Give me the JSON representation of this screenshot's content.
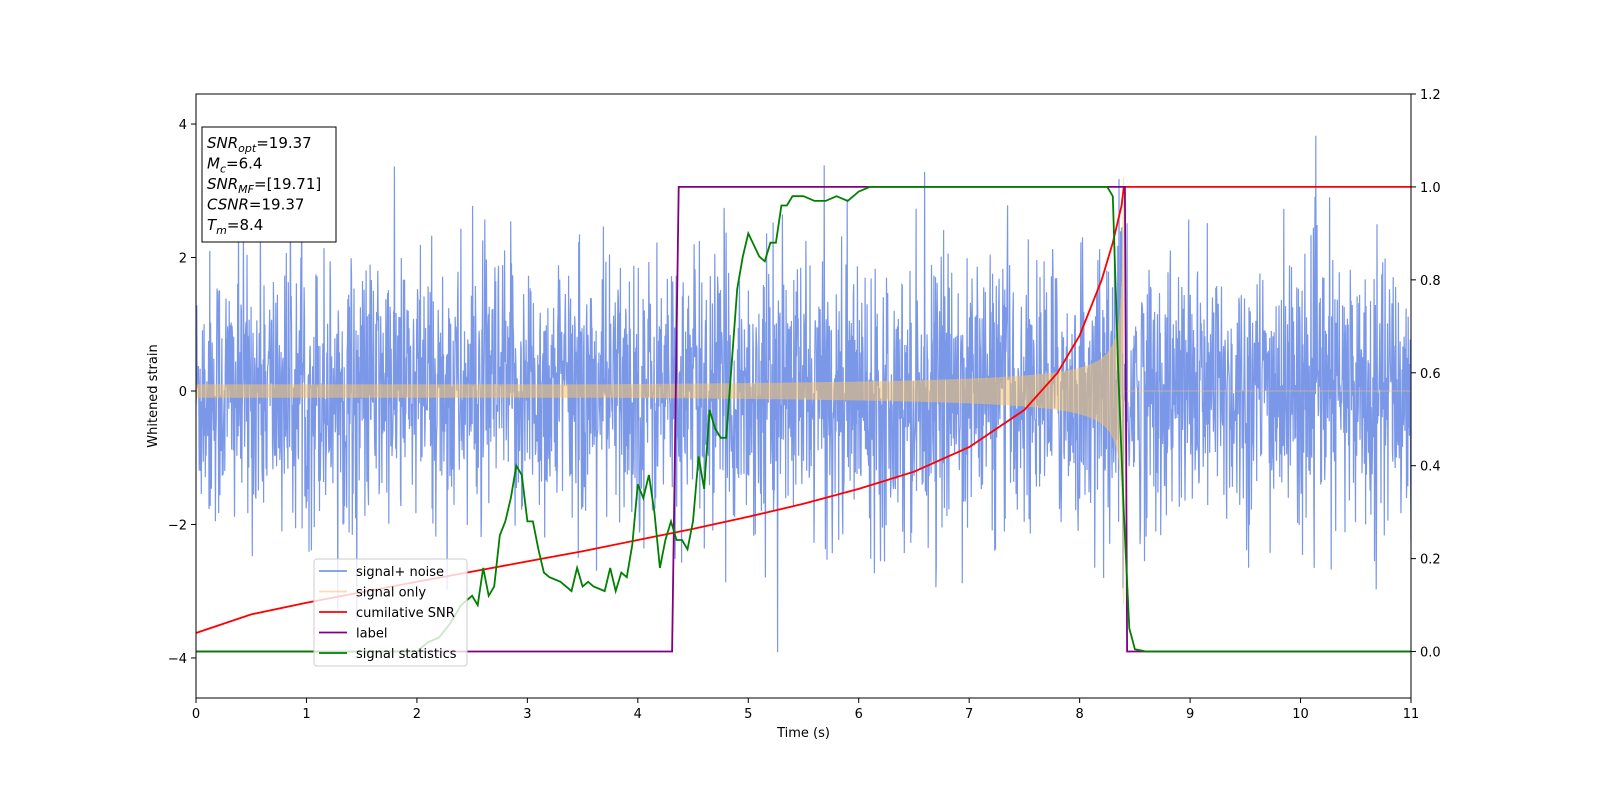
{
  "chart_data": {
    "type": "line",
    "title": "",
    "xlabel": "Time (s)",
    "ylabel": "Whitened strain",
    "xlim": [
      0,
      11
    ],
    "ylim": [
      -4.6,
      4.45
    ],
    "y2lim": [
      -0.1,
      1.2
    ],
    "x_ticks": [
      0,
      1,
      2,
      3,
      4,
      5,
      6,
      7,
      8,
      9,
      10,
      11
    ],
    "y_ticks": [
      -4,
      -2,
      0,
      2,
      4
    ],
    "y2_ticks": [
      "0.0",
      "0.2",
      "0.4",
      "0.6",
      "0.8",
      "1.0",
      "1.2"
    ],
    "grid": false,
    "legend_position": "lower-left",
    "colors": {
      "noise": "#6b8ce6",
      "signal": "#f5c36b",
      "snr": "#ff0000",
      "label": "#800080",
      "stat": "#008000"
    },
    "series": [
      {
        "name": "signal+ noise",
        "axis": "left",
        "description_values": "noise band approximately +/-2.5 with spikes up to about 4",
        "amplitude_std": 1.0
      },
      {
        "name": "signal only",
        "axis": "left",
        "chirp_merger_time": 8.4,
        "amplitude_range": [
          0.1,
          3.2
        ]
      },
      {
        "name": "cumilative SNR",
        "axis": "right",
        "x": [
          0,
          0.5,
          1,
          1.5,
          2,
          2.5,
          3,
          3.5,
          4,
          4.5,
          5,
          5.5,
          6,
          6.5,
          7,
          7.5,
          7.8,
          8.0,
          8.2,
          8.3,
          8.38,
          8.4,
          11
        ],
        "y": [
          0.04,
          0.08,
          0.105,
          0.128,
          0.15,
          0.172,
          0.194,
          0.216,
          0.24,
          0.264,
          0.29,
          0.318,
          0.35,
          0.387,
          0.44,
          0.52,
          0.6,
          0.68,
          0.8,
          0.88,
          0.96,
          1.0,
          1.0
        ]
      },
      {
        "name": "label",
        "axis": "right",
        "x": [
          0,
          4.31,
          4.37,
          8.41,
          8.43,
          11
        ],
        "y": [
          0,
          0,
          1,
          1,
          0,
          0
        ]
      },
      {
        "name": "signal statistics",
        "axis": "right",
        "x": [
          0,
          0.5,
          1,
          1.5,
          2,
          2.1,
          2.2,
          2.3,
          2.4,
          2.5,
          2.55,
          2.6,
          2.65,
          2.7,
          2.75,
          2.8,
          2.85,
          2.9,
          2.95,
          3.0,
          3.05,
          3.1,
          3.15,
          3.2,
          3.3,
          3.4,
          3.45,
          3.5,
          3.55,
          3.6,
          3.7,
          3.75,
          3.8,
          3.85,
          3.9,
          3.95,
          4.0,
          4.05,
          4.1,
          4.15,
          4.2,
          4.25,
          4.3,
          4.35,
          4.4,
          4.45,
          4.5,
          4.55,
          4.6,
          4.65,
          4.7,
          4.75,
          4.8,
          4.85,
          4.9,
          4.95,
          5.0,
          5.1,
          5.15,
          5.2,
          5.25,
          5.3,
          5.35,
          5.4,
          5.5,
          5.6,
          5.7,
          5.8,
          5.9,
          6.0,
          6.1,
          6.3,
          6.5,
          6.7,
          7.0,
          7.5,
          8.0,
          8.25,
          8.3,
          8.35,
          8.4,
          8.45,
          8.5,
          8.6,
          11
        ],
        "y": [
          0.0,
          0.0,
          0.0,
          0.0,
          0.0,
          0.02,
          0.03,
          0.06,
          0.1,
          0.12,
          0.1,
          0.18,
          0.12,
          0.14,
          0.25,
          0.28,
          0.33,
          0.4,
          0.38,
          0.28,
          0.28,
          0.22,
          0.17,
          0.16,
          0.15,
          0.13,
          0.18,
          0.14,
          0.15,
          0.14,
          0.13,
          0.18,
          0.13,
          0.17,
          0.16,
          0.23,
          0.36,
          0.33,
          0.38,
          0.3,
          0.18,
          0.24,
          0.28,
          0.24,
          0.24,
          0.22,
          0.28,
          0.42,
          0.35,
          0.52,
          0.48,
          0.46,
          0.46,
          0.62,
          0.78,
          0.85,
          0.9,
          0.85,
          0.84,
          0.88,
          0.88,
          0.96,
          0.96,
          0.98,
          0.98,
          0.97,
          0.97,
          0.98,
          0.97,
          0.99,
          1.0,
          1.0,
          1.0,
          1.0,
          1.0,
          1.0,
          1.0,
          1.0,
          0.98,
          0.6,
          0.3,
          0.05,
          0.005,
          0.0,
          0.0
        ]
      }
    ],
    "annotation": {
      "lines": [
        {
          "base": "SNR",
          "sub": "opt",
          "rest": "=19.37"
        },
        {
          "base": "M",
          "sub": "c",
          "rest": "=6.4"
        },
        {
          "base": "SNR",
          "sub": "MF",
          "rest": "=[19.71]"
        },
        {
          "base": "CSNR",
          "sub": "",
          "rest": "=19.37"
        },
        {
          "base": "T",
          "sub": "m",
          "rest": "=8.4"
        }
      ]
    }
  }
}
